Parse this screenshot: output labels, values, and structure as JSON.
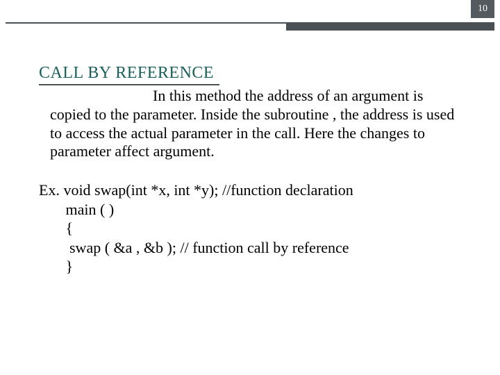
{
  "page_number": "10",
  "colors": {
    "accent_dark": "#4b5055",
    "title_green": "#1a5f5a",
    "text": "#000000",
    "bg": "#ffffff",
    "page_box_text": "#ffffff"
  },
  "fonts": {
    "body_family": "Georgia, 'Times New Roman', serif",
    "title_size_pt": 18,
    "body_size_pt": 16
  },
  "section": {
    "title": "CALL BY REFERENCE",
    "paragraph": "In this method the address of an argument is copied to the parameter. Inside the subroutine , the address is used to access the actual parameter in the call. Here the changes to parameter affect argument.",
    "example_label": "Ex.",
    "code": {
      "line1": "Ex. void swap(int *x, int *y); //function declaration",
      "line2": "       main ( )",
      "line3": "       {",
      "line4": "        swap ( &a , &b ); // function call by reference",
      "line5": "       }"
    }
  }
}
